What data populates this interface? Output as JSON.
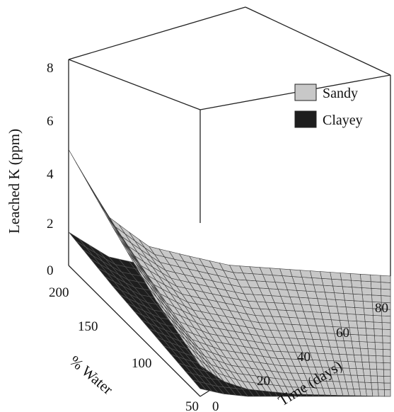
{
  "chart_data": {
    "type": "surface3d",
    "zlabel": "Leached K (ppm)",
    "xlabel": "Time (days)",
    "ylabel": "% Water",
    "xlim": [
      0,
      80
    ],
    "ylim": [
      50,
      200
    ],
    "zlim": [
      0,
      8
    ],
    "x_ticks": [
      0,
      20,
      40,
      60,
      80
    ],
    "y_ticks": [
      50,
      100,
      150,
      200
    ],
    "z_ticks": [
      0,
      2,
      4,
      6,
      8
    ],
    "legend_position": "top-right",
    "series": [
      {
        "name": "Sandy",
        "color": "#c8c8c8",
        "time_days": [
          0,
          10,
          20,
          40,
          80
        ],
        "water_pct": [
          50,
          100,
          150,
          200
        ],
        "leached_k_ppm": [
          [
            1.2,
            0.6,
            0.3,
            0.1,
            0.0
          ],
          [
            2.0,
            0.9,
            0.5,
            0.15,
            0.0
          ],
          [
            3.2,
            1.4,
            0.7,
            0.2,
            0.0
          ],
          [
            4.5,
            2.0,
            0.9,
            0.25,
            0.0
          ]
        ]
      },
      {
        "name": "Clayey",
        "color": "#1e1e1e",
        "time_days": [
          0,
          10,
          20,
          40,
          80
        ],
        "water_pct": [
          50,
          100,
          150,
          200
        ],
        "leached_k_ppm": [
          [
            0.3,
            0.1,
            0.0,
            0.0,
            0.0
          ],
          [
            0.6,
            0.2,
            0.05,
            0.0,
            0.0
          ],
          [
            0.9,
            0.3,
            0.1,
            0.0,
            0.0
          ],
          [
            1.3,
            0.4,
            0.1,
            0.0,
            0.0
          ]
        ]
      }
    ]
  }
}
